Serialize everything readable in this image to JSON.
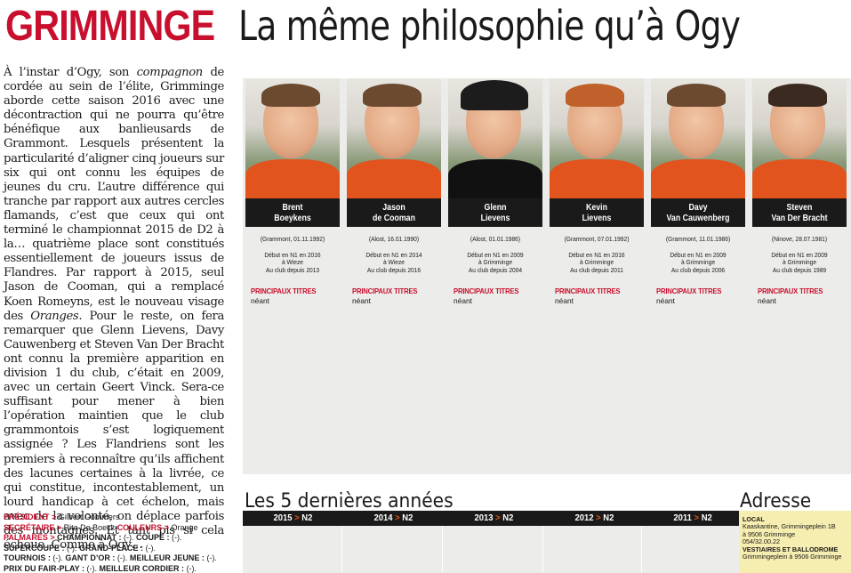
{
  "headline": {
    "team": "GRIMMINGE",
    "title": "La même philosophie qu’à Ogy"
  },
  "article": {
    "p1": "À l’instar d’Ogy, son ",
    "p1_em": "compagnon",
    "p2": " de cordée au sein de l’élite, Grimminge aborde cette saison 2016 avec une décontraction qui ne pourra qu’être bénéfique aux banlieusards de Grammont. Lesquels présentent la particularité d’aligner cinq joueurs sur six qui ont connu les équipes de jeunes du cru. L’autre différence qui tranche par rapport aux autres cercles flamands, c’est que ceux qui ont terminé le championnat 2015 de D2 à la… quatrième place sont constitués essentiellement de joueurs issus de Flandres. Par rapport à 2015, seul Jason de Cooman, qui a remplacé Koen Romeyns, est le nouveau visage des ",
    "p2_em": "Oranges",
    "p3": ". Pour le reste, on fera remarquer que Glenn Lievens, Davy Cauwenberg et Steven Van Der Bracht ont connu la première apparition en division 1 du club, c’était en 2009, avec un certain Geert Vinck. Sera-ce suffisant pour mener à bien l’opération maintien que le club grammontois s’est logiquement assignée ? Les Flandriens sont les premiers à reconnaître qu’ils affichent des lacunes certaines à la livrée, ce qui constitue, incontestablement, un lourd handicap à cet échelon, mais avec de la volonté, on déplace parfois des montagnes. Et tant pis si cela échoue. Comme à Ogy…"
  },
  "club_info": {
    "president_label": "PRÉSIDENT",
    "president": "Gilbert Gommers",
    "secretaire_label": "SECRÉTAIRE",
    "secretaire": "Rita De Boeck",
    "couleurs_label": "COULEURS",
    "couleurs": "Orange",
    "palmares_label": "PALMARÈS",
    "championnat_label": "CHAMPIONNAT :",
    "championnat": "(-).",
    "coupe_label": "COUPE :",
    "coupe": "(-).",
    "supercoupe_label": "SUPERCOUPE :",
    "supercoupe": "(-).",
    "grandplace_label": "GRAND-PLACE :",
    "grandplace": "(-).",
    "tournois_label": "TOURNOIS :",
    "tournois": "(-).",
    "gantdor_label": "GANT D’OR :",
    "gantdor": "(-).",
    "meilleurjeune_label": "MEILLEUR JEUNE :",
    "meilleurjeune": "(-).",
    "fairplay_label": "PRIX DU FAIR-PLAY :",
    "fairplay": "(-).",
    "cordier_label": "MEILLEUR CORDIER :",
    "cordier": "(-)."
  },
  "players": [
    {
      "first": "Brent",
      "last": "Boeykens",
      "birth": "(Grammont, 01.11.1992)",
      "debut1": "Début en N1 en 2016",
      "debut2": "à Wieze",
      "club": "Au club depuis 2013",
      "titles_label": "PRINCIPAUX TITRES",
      "titles": "néant",
      "style": "hair"
    },
    {
      "first": "Jason",
      "last": "de Cooman",
      "birth": "(Alost, 16.01.1990)",
      "debut1": "Début en N1 en 2014",
      "debut2": "à Wieze",
      "club": "Au club depuis 2016",
      "titles_label": "PRINCIPAUX TITRES",
      "titles": "néant",
      "style": "hair"
    },
    {
      "first": "Glenn",
      "last": "Lievens",
      "birth": "(Alost, 01.01.1986)",
      "debut1": "Début en N1 en 2009",
      "debut2": "à Grimminge",
      "club": "Au club depuis 2004",
      "titles_label": "PRINCIPAUX TITRES",
      "titles": "néant",
      "style": "cap"
    },
    {
      "first": "Kevin",
      "last": "Lievens",
      "birth": "(Grammont, 07.01.1992)",
      "debut1": "Début en N1 en 2016",
      "debut2": "à Grimminge",
      "club": "Au club depuis 2011",
      "titles_label": "PRINCIPAUX TITRES",
      "titles": "néant",
      "style": "hair"
    },
    {
      "first": "Davy",
      "last": "Van Cauwenberg",
      "birth": "(Grammont, 11.01.1986)",
      "debut1": "Début en N1 en 2009",
      "debut2": "à Grimminge",
      "club": "Au club depuis 2006",
      "titles_label": "PRINCIPAUX TITRES",
      "titles": "néant",
      "style": "hair"
    },
    {
      "first": "Steven",
      "last": "Van Der Bracht",
      "birth": "(Ninove, 28.07.1981)",
      "debut1": "Début en N1 en 2009",
      "debut2": "à Grimminge",
      "club": "Au club depuis 1989",
      "titles_label": "PRINCIPAUX TITRES",
      "titles": "néant",
      "style": "hair"
    }
  ],
  "last5": {
    "title": "Les 5 dernières années",
    "seasons": [
      {
        "year": "2015",
        "arrow": ">",
        "div": "N2"
      },
      {
        "year": "2014",
        "arrow": ">",
        "div": "N2"
      },
      {
        "year": "2013",
        "arrow": ">",
        "div": "N2"
      },
      {
        "year": "2012",
        "arrow": ">",
        "div": "N2"
      },
      {
        "year": "2011",
        "arrow": ">",
        "div": "N2"
      }
    ]
  },
  "address": {
    "title": "Adresse",
    "local_label": "LOCAL",
    "local_line1": "Kaaskantine, Grimmingeplein 1B",
    "local_line2": "à 9506 Grimminge",
    "local_phone": "054/32.00.22",
    "vestiaires_label": "VESTIAIRES ET BALLODROME",
    "vestiaires_line": "Grimmingeplein à 9506 Grimminge"
  },
  "colors": {
    "accent_red": "#c8102e",
    "orange": "#e2541d",
    "panel_grey": "#ececea",
    "address_yellow": "#f6edb0"
  }
}
